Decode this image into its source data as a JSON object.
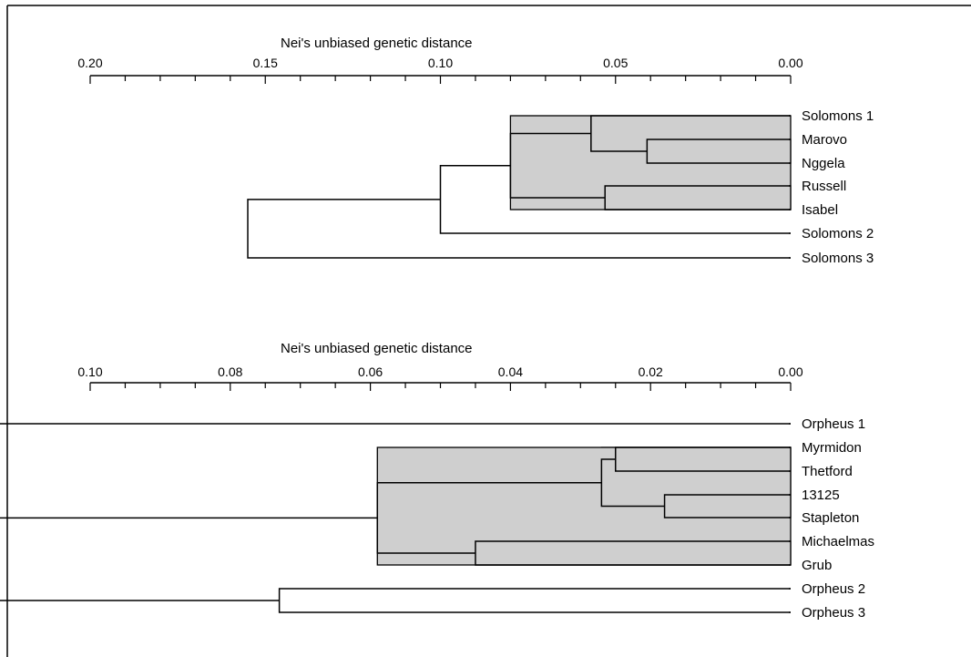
{
  "dendrograms": [
    {
      "axis_title": "Nei's unbiased genetic distance",
      "axis_range": [
        0.2,
        0.0
      ],
      "tick_labels": [
        "0.20",
        "0.15",
        "0.10",
        "0.05",
        "0.00"
      ],
      "tick_values": [
        0.2,
        0.15,
        0.1,
        0.05,
        0.0
      ],
      "minor_tick_step": 0.01,
      "leaves": [
        "Solomons 1",
        "Marovo",
        "Nggela",
        "Russell",
        "Isabel",
        "Solomons 2",
        "Solomons 3"
      ],
      "merges": [
        {
          "a": "Marovo",
          "b": "Nggela",
          "height": 0.041,
          "shade": "dark"
        },
        {
          "a": "Russell",
          "b": "Isabel",
          "height": 0.053,
          "shade": "dark"
        },
        {
          "a": "Solomons 1",
          "b": "Marovo",
          "height": 0.057
        },
        {
          "a": "Nggela",
          "b": "Isabel",
          "height": 0.08,
          "shade": "light"
        },
        {
          "a": "Solomons 1",
          "b": "Solomons 2",
          "height": 0.1
        },
        {
          "a": "Solomons 1",
          "b": "Solomons 3",
          "height": 0.155
        }
      ]
    },
    {
      "axis_title": "Nei's unbiased genetic distance",
      "axis_range": [
        0.1,
        0.0
      ],
      "tick_labels": [
        "0.10",
        "0.08",
        "0.06",
        "0.04",
        "0.02",
        "0.00"
      ],
      "tick_values": [
        0.1,
        0.08,
        0.06,
        0.04,
        0.02,
        0.0
      ],
      "minor_tick_step": 0.005,
      "leaves": [
        "Orpheus 1",
        "Myrmidon",
        "Thetford",
        "13125",
        "Stapleton",
        "Michaelmas",
        "Grub",
        "Orpheus 2",
        "Orpheus 3"
      ],
      "merges": [
        {
          "a": "13125",
          "b": "Stapleton",
          "height": 0.018
        },
        {
          "a": "Myrmidon",
          "b": "Thetford",
          "height": 0.025
        },
        {
          "a": "Thetford",
          "b": "Stapleton",
          "height": 0.027,
          "shade": "dark"
        },
        {
          "a": "Michaelmas",
          "b": "Grub",
          "height": 0.045,
          "shade": "dark"
        },
        {
          "a": "Myrmidon",
          "b": "Grub",
          "height": 0.059,
          "shade": "light"
        },
        {
          "a": "Orpheus 1",
          "b": "Stapleton",
          "height": 0.131
        },
        {
          "a": "Orpheus 2",
          "b": "Orpheus 3",
          "height": 0.073
        },
        {
          "a": "Orpheus 1",
          "b": "Orpheus 3",
          "height": 0.176
        }
      ]
    }
  ]
}
